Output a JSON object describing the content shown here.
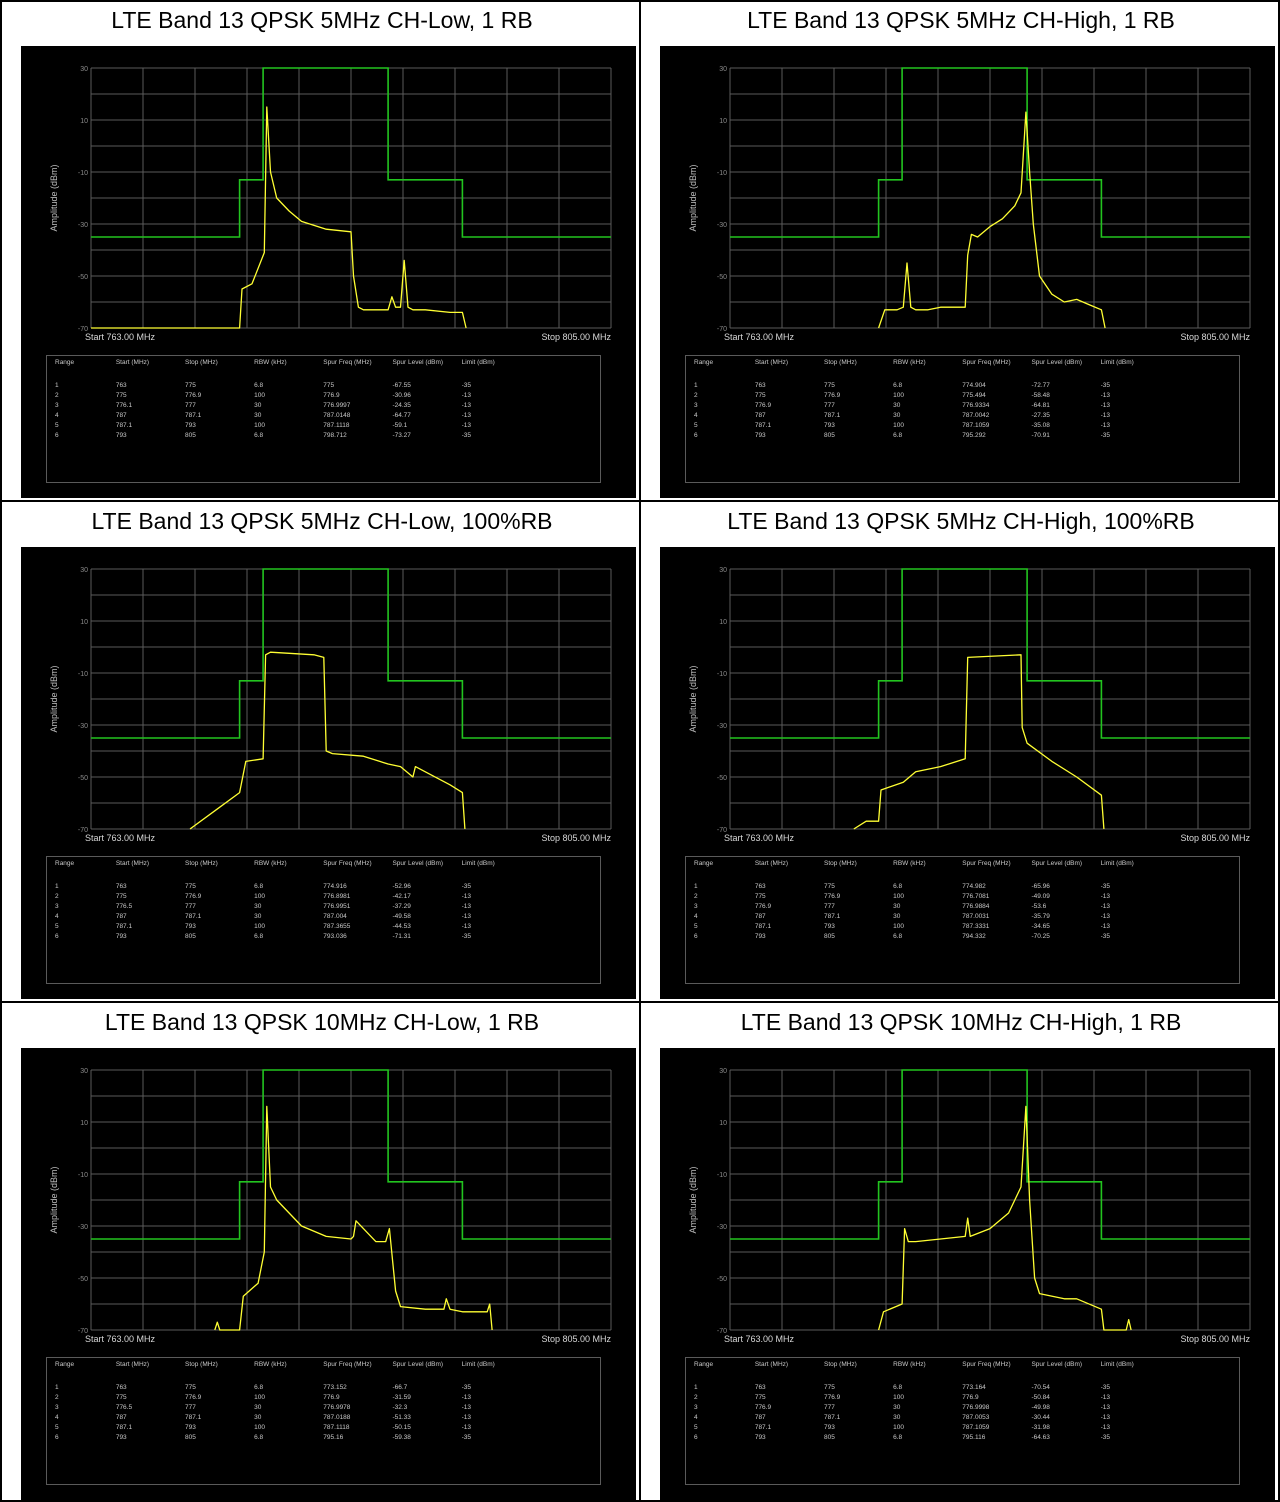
{
  "table_header": {
    "range": "Range",
    "start": "Start (MHz)",
    "stop": "Stop (MHz)",
    "rbw": "RBW (kHz)",
    "spur_freq": "Spur Freq (MHz)",
    "spur_level": "Spur Level (dBm)",
    "limit": "Limit (dBm)"
  },
  "colors": {
    "trace": "#ffff33",
    "limit_line": "#22c41f",
    "grid": "#5a5a5a",
    "background": "#000000"
  },
  "plots": [
    {
      "title": "LTE Band 13 QPSK 5MHz CH-Low, 1 RB",
      "ylabel": "Amplitude (dBm)",
      "start_label": "Start 763.00 MHz",
      "stop_label": "Stop 805.00 MHz",
      "rows": [
        [
          "1",
          "763",
          "775",
          "6.8",
          "775",
          "-67.55",
          "-35"
        ],
        [
          "2",
          "775",
          "776.9",
          "100",
          "776.9",
          "-30.96",
          "-13"
        ],
        [
          "3",
          "776.1",
          "777",
          "30",
          "776.9997",
          "-24.35",
          "-13"
        ],
        [
          "4",
          "787",
          "787.1",
          "30",
          "787.0148",
          "-64.77",
          "-13"
        ],
        [
          "5",
          "787.1",
          "793",
          "100",
          "787.1118",
          "-59.1",
          "-13"
        ],
        [
          "6",
          "793",
          "805",
          "6.8",
          "798.712",
          "-73.27",
          "-35"
        ]
      ]
    },
    {
      "title": "LTE Band 13 QPSK 5MHz CH-High, 1 RB",
      "ylabel": "Amplitude (dBm)",
      "start_label": "Start 763.00 MHz",
      "stop_label": "Stop 805.00 MHz",
      "rows": [
        [
          "1",
          "763",
          "775",
          "6.8",
          "774.904",
          "-72.77",
          "-35"
        ],
        [
          "2",
          "775",
          "776.9",
          "100",
          "775.494",
          "-58.48",
          "-13"
        ],
        [
          "3",
          "776.9",
          "777",
          "30",
          "776.9334",
          "-64.81",
          "-13"
        ],
        [
          "4",
          "787",
          "787.1",
          "30",
          "787.0042",
          "-27.35",
          "-13"
        ],
        [
          "5",
          "787.1",
          "793",
          "100",
          "787.1059",
          "-35.08",
          "-13"
        ],
        [
          "6",
          "793",
          "805",
          "6.8",
          "795.292",
          "-70.91",
          "-35"
        ]
      ]
    },
    {
      "title": "LTE Band 13 QPSK 5MHz CH-Low, 100%RB",
      "ylabel": "Amplitude (dBm)",
      "start_label": "Start 763.00 MHz",
      "stop_label": "Stop 805.00 MHz",
      "rows": [
        [
          "1",
          "763",
          "775",
          "6.8",
          "774.916",
          "-52.96",
          "-35"
        ],
        [
          "2",
          "775",
          "776.9",
          "100",
          "776.8981",
          "-42.17",
          "-13"
        ],
        [
          "3",
          "776.5",
          "777",
          "30",
          "776.9951",
          "-37.29",
          "-13"
        ],
        [
          "4",
          "787",
          "787.1",
          "30",
          "787.004",
          "-49.58",
          "-13"
        ],
        [
          "5",
          "787.1",
          "793",
          "100",
          "787.3655",
          "-44.53",
          "-13"
        ],
        [
          "6",
          "793",
          "805",
          "6.8",
          "793.036",
          "-71.31",
          "-35"
        ]
      ]
    },
    {
      "title": "LTE Band 13 QPSK 5MHz CH-High, 100%RB",
      "ylabel": "Amplitude (dBm)",
      "start_label": "Start 763.00 MHz",
      "stop_label": "Stop 805.00 MHz",
      "rows": [
        [
          "1",
          "763",
          "775",
          "6.8",
          "774.982",
          "-65.96",
          "-35"
        ],
        [
          "2",
          "775",
          "776.9",
          "100",
          "776.7081",
          "-49.09",
          "-13"
        ],
        [
          "3",
          "776.9",
          "777",
          "30",
          "776.9884",
          "-53.6",
          "-13"
        ],
        [
          "4",
          "787",
          "787.1",
          "30",
          "787.0031",
          "-35.79",
          "-13"
        ],
        [
          "5",
          "787.1",
          "793",
          "100",
          "787.3331",
          "-34.65",
          "-13"
        ],
        [
          "6",
          "793",
          "805",
          "6.8",
          "794.332",
          "-70.25",
          "-35"
        ]
      ]
    },
    {
      "title": "LTE Band 13 QPSK 10MHz CH-Low, 1 RB",
      "ylabel": "Amplitude (dBm)",
      "start_label": "Start 763.00 MHz",
      "stop_label": "Stop 805.00 MHz",
      "rows": [
        [
          "1",
          "763",
          "775",
          "6.8",
          "773.152",
          "-66.7",
          "-35"
        ],
        [
          "2",
          "775",
          "776.9",
          "100",
          "776.9",
          "-31.59",
          "-13"
        ],
        [
          "3",
          "776.5",
          "777",
          "30",
          "776.9978",
          "-32.3",
          "-13"
        ],
        [
          "4",
          "787",
          "787.1",
          "30",
          "787.0188",
          "-51.33",
          "-13"
        ],
        [
          "5",
          "787.1",
          "793",
          "100",
          "787.1118",
          "-50.15",
          "-13"
        ],
        [
          "6",
          "793",
          "805",
          "6.8",
          "795.16",
          "-59.38",
          "-35"
        ]
      ]
    },
    {
      "title": "LTE Band 13 QPSK 10MHz CH-High, 1 RB",
      "ylabel": "Amplitude (dBm)",
      "start_label": "Start 763.00 MHz",
      "stop_label": "Stop 805.00 MHz",
      "rows": [
        [
          "1",
          "763",
          "775",
          "6.8",
          "773.164",
          "-70.54",
          "-35"
        ],
        [
          "2",
          "775",
          "776.9",
          "100",
          "776.9",
          "-50.84",
          "-13"
        ],
        [
          "3",
          "776.9",
          "777",
          "30",
          "776.9998",
          "-49.98",
          "-13"
        ],
        [
          "4",
          "787",
          "787.1",
          "30",
          "787.0053",
          "-30.44",
          "-13"
        ],
        [
          "5",
          "787.1",
          "793",
          "100",
          "787.1059",
          "-31.98",
          "-13"
        ],
        [
          "6",
          "793",
          "805",
          "6.8",
          "795.116",
          "-64.63",
          "-35"
        ]
      ]
    }
  ],
  "chart_data": [
    {
      "type": "line",
      "xlim": [
        763,
        805
      ],
      "ylim": [
        -70,
        30
      ],
      "yticks": [
        30,
        10,
        -10,
        -30,
        -50,
        -70
      ],
      "limit_line": {
        "x": [
          763,
          775,
          775,
          776.9,
          776.9,
          787,
          787,
          793,
          793,
          805
        ],
        "y": [
          -35,
          -35,
          -13,
          -13,
          30,
          30,
          -13,
          -13,
          -35,
          -35
        ]
      },
      "series": [
        {
          "x": [
            763,
            773,
            775,
            775.2,
            776,
            777,
            777.2,
            777.5,
            778,
            779,
            780,
            782,
            784,
            784.2,
            784.6,
            785,
            786,
            787,
            787.3,
            787.6,
            788,
            788.3,
            788.6,
            789,
            790,
            792,
            793,
            793.3
          ],
          "y": [
            -70,
            -70,
            -70,
            -55,
            -53,
            -41,
            15,
            -10,
            -20,
            -25,
            -29,
            -32,
            -33,
            -50,
            -62,
            -63,
            -63,
            -63,
            -58,
            -62,
            -62,
            -44,
            -62,
            -63,
            -63,
            -64,
            -64,
            -70
          ]
        }
      ]
    },
    {
      "type": "line",
      "xlim": [
        763,
        805
      ],
      "ylim": [
        -70,
        30
      ],
      "yticks": [
        30,
        10,
        -10,
        -30,
        -50,
        -70
      ],
      "limit_line": {
        "x": [
          763,
          775,
          775,
          776.9,
          776.9,
          787,
          787,
          793,
          793,
          805
        ],
        "y": [
          -35,
          -35,
          -13,
          -13,
          30,
          30,
          -13,
          -13,
          -35,
          -35
        ]
      },
      "series": [
        {
          "x": [
            775,
            775.5,
            776.5,
            777,
            777.3,
            777.6,
            778,
            779,
            780,
            782,
            782.2,
            782.5,
            783,
            784,
            785,
            786,
            786.5,
            786.9,
            787.2,
            787.5,
            788,
            789,
            790,
            791,
            792,
            793,
            793.3
          ],
          "y": [
            -70,
            -63,
            -63,
            -62,
            -45,
            -62,
            -63,
            -63,
            -62,
            -62,
            -42,
            -34,
            -35,
            -31,
            -28,
            -23,
            -18,
            13,
            -10,
            -30,
            -50,
            -57,
            -60,
            -59,
            -61,
            -63,
            -70
          ]
        }
      ]
    },
    {
      "type": "line",
      "xlim": [
        763,
        805
      ],
      "ylim": [
        -70,
        30
      ],
      "yticks": [
        30,
        10,
        -10,
        -30,
        -50,
        -70
      ],
      "limit_line": {
        "x": [
          763,
          775,
          775,
          776.9,
          776.9,
          787,
          787,
          793,
          793,
          805
        ],
        "y": [
          -35,
          -35,
          -13,
          -13,
          30,
          30,
          -13,
          -13,
          -35,
          -35
        ]
      },
      "series": [
        {
          "x": [
            771,
            773,
            775,
            775.5,
            776.9,
            777.1,
            777.5,
            781,
            781.8,
            782,
            782.5,
            785,
            787,
            788,
            789,
            789.2,
            790,
            792,
            793,
            793.2
          ],
          "y": [
            -70,
            -63,
            -56,
            -44,
            -43,
            -3,
            -2,
            -3,
            -4,
            -40,
            -41,
            -42,
            -45,
            -46,
            -50,
            -46,
            -48,
            -53,
            -56,
            -70
          ]
        }
      ]
    },
    {
      "type": "line",
      "xlim": [
        763,
        805
      ],
      "ylim": [
        -70,
        30
      ],
      "yticks": [
        30,
        10,
        -10,
        -30,
        -50,
        -70
      ],
      "limit_line": {
        "x": [
          763,
          775,
          775,
          776.9,
          776.9,
          787,
          787,
          793,
          793,
          805
        ],
        "y": [
          -35,
          -35,
          -13,
          -13,
          30,
          30,
          -13,
          -13,
          -35,
          -35
        ]
      },
      "series": [
        {
          "x": [
            773,
            774,
            775,
            775.2,
            777,
            778,
            780,
            782,
            782.2,
            786.5,
            786.6,
            787,
            789,
            791,
            793,
            793.2
          ],
          "y": [
            -70,
            -67,
            -67,
            -55,
            -52,
            -48,
            -46,
            -43,
            -4,
            -3,
            -31,
            -37,
            -44,
            -50,
            -57,
            -70
          ]
        }
      ]
    },
    {
      "type": "line",
      "xlim": [
        763,
        805
      ],
      "ylim": [
        -70,
        30
      ],
      "yticks": [
        30,
        10,
        -10,
        -30,
        -50,
        -70
      ],
      "limit_line": {
        "x": [
          763,
          775,
          775,
          776.9,
          776.9,
          787,
          787,
          793,
          793,
          805
        ],
        "y": [
          -35,
          -35,
          -13,
          -13,
          30,
          30,
          -13,
          -13,
          -35,
          -35
        ]
      },
      "series": [
        {
          "x": [
            773,
            773.2,
            773.4,
            775,
            775.3,
            776.5,
            777,
            777.2,
            777.5,
            778,
            780,
            782,
            784,
            784.2,
            784.4,
            786,
            786.8,
            787.1,
            787.6,
            788,
            790,
            791.5,
            791.7,
            792,
            793,
            795,
            795.2,
            795.4
          ],
          "y": [
            -70,
            -67,
            -70,
            -70,
            -57,
            -52,
            -40,
            16,
            -15,
            -20,
            -30,
            -34,
            -35,
            -34,
            -28,
            -36,
            -36,
            -31,
            -55,
            -61,
            -62,
            -62,
            -58,
            -62,
            -63,
            -63,
            -60,
            -70
          ]
        }
      ]
    },
    {
      "type": "line",
      "xlim": [
        763,
        805
      ],
      "ylim": [
        -70,
        30
      ],
      "yticks": [
        30,
        10,
        -10,
        -30,
        -50,
        -70
      ],
      "limit_line": {
        "x": [
          763,
          775,
          775,
          776.9,
          776.9,
          787,
          787,
          793,
          793,
          805
        ],
        "y": [
          -35,
          -35,
          -13,
          -13,
          30,
          30,
          -13,
          -13,
          -35,
          -35
        ]
      },
      "series": [
        {
          "x": [
            775,
            775.4,
            776.9,
            777.1,
            777.4,
            778,
            780,
            782,
            782.2,
            782.4,
            784,
            785.5,
            786.5,
            786.9,
            787.2,
            787.6,
            788,
            790,
            791,
            793,
            793.2,
            795,
            795.2,
            795.4
          ],
          "y": [
            -70,
            -63,
            -60,
            -31,
            -36,
            -36,
            -35,
            -34,
            -27,
            -34,
            -31,
            -25,
            -15,
            16,
            -20,
            -50,
            -56,
            -58,
            -58,
            -62,
            -70,
            -70,
            -66,
            -70
          ]
        }
      ]
    }
  ]
}
